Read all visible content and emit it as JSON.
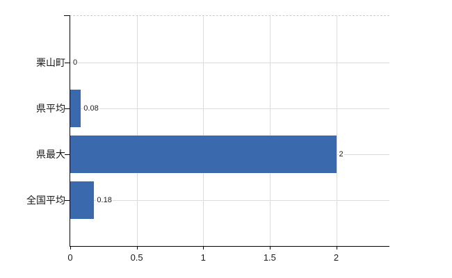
{
  "chart_data": {
    "type": "bar",
    "orientation": "horizontal",
    "title": "",
    "xlabel": "",
    "ylabel": "",
    "categories": [
      "栗山町",
      "県平均",
      "県最大",
      "全国平均"
    ],
    "values": [
      0,
      0.08,
      2,
      0.18
    ],
    "value_labels": [
      "0",
      "0.08",
      "2",
      "0.18"
    ],
    "xticks": [
      0,
      0.5,
      1,
      1.5,
      2
    ],
    "xtick_labels": [
      "0",
      "0.5",
      "1",
      "1.5",
      "2"
    ],
    "xlim": [
      0,
      2.4
    ],
    "grid": true,
    "legend": false,
    "legend_position": "none",
    "bar_color": "#3b69ad",
    "axis_color": "#000000",
    "vgrid_color": "#dcdcdc",
    "hgrid_color": "#d9ded9",
    "top_border_style": "dashed",
    "background": "#ffffff"
  }
}
